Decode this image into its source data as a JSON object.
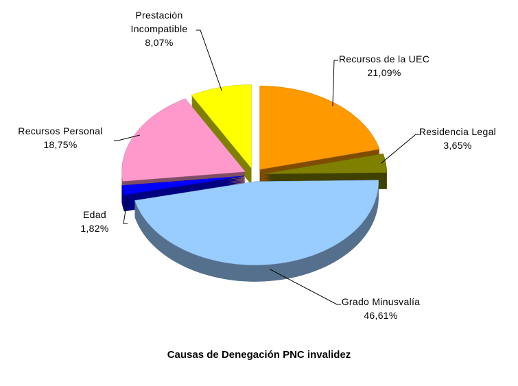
{
  "chart_data": {
    "type": "pie",
    "title": "Causas de Denegación PNC invalidez",
    "categories": [
      "Recursos de la UEC",
      "Residencia Legal",
      "Grado Minusvalía",
      "Edad",
      "Recursos Personal",
      "Prestación Incompatible"
    ],
    "values": [
      21.09,
      3.65,
      46.61,
      1.82,
      18.75,
      8.07
    ],
    "value_labels": [
      "21,09%",
      "3,65%",
      "46,61%",
      "1,82%",
      "18,75%",
      "8,07%"
    ],
    "colors": [
      "#FF9900",
      "#808000",
      "#99CCFF",
      "#0000FF",
      "#FF99CC",
      "#FFFF00"
    ]
  }
}
